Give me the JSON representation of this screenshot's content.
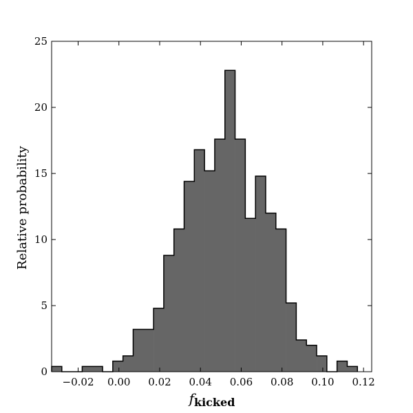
{
  "chart_data": {
    "type": "bar",
    "title": "",
    "xlabel": "f",
    "xlabel_subscript": "kicked",
    "ylabel": "Relative probability",
    "xlim": [
      -0.033,
      0.124
    ],
    "ylim": [
      0,
      25
    ],
    "grid": false,
    "bin_width": 0.005,
    "bins_left": [
      -0.033,
      -0.028,
      -0.023,
      -0.018,
      -0.013,
      -0.008,
      -0.003,
      0.002,
      0.007,
      0.012,
      0.017,
      0.022,
      0.027,
      0.032,
      0.037,
      0.042,
      0.047,
      0.052,
      0.057,
      0.062,
      0.067,
      0.072,
      0.077,
      0.082,
      0.087,
      0.092,
      0.097,
      0.102,
      0.107,
      0.112
    ],
    "values": [
      0.4,
      0,
      0,
      0.4,
      0.4,
      0,
      0.8,
      1.2,
      3.2,
      3.2,
      4.8,
      8.8,
      10.8,
      14.4,
      16.8,
      15.2,
      17.6,
      22.8,
      17.6,
      11.6,
      14.8,
      12.0,
      10.8,
      5.2,
      2.4,
      2.0,
      1.2,
      0,
      0.8,
      0.4
    ],
    "x_ticks": [
      -0.02,
      0.0,
      0.02,
      0.04,
      0.06,
      0.08,
      0.1,
      0.12
    ],
    "x_tick_labels": [
      "−0.02",
      "0.00",
      "0.02",
      "0.04",
      "0.06",
      "0.08",
      "0.10",
      "0.12"
    ],
    "y_ticks": [
      0,
      5,
      10,
      15,
      20,
      25
    ],
    "y_tick_labels": [
      "0",
      "5",
      "10",
      "15",
      "20",
      "25"
    ],
    "colors": {
      "bar_fill": "#666666",
      "bar_stroke": "#000000",
      "axis": "#000000"
    }
  }
}
